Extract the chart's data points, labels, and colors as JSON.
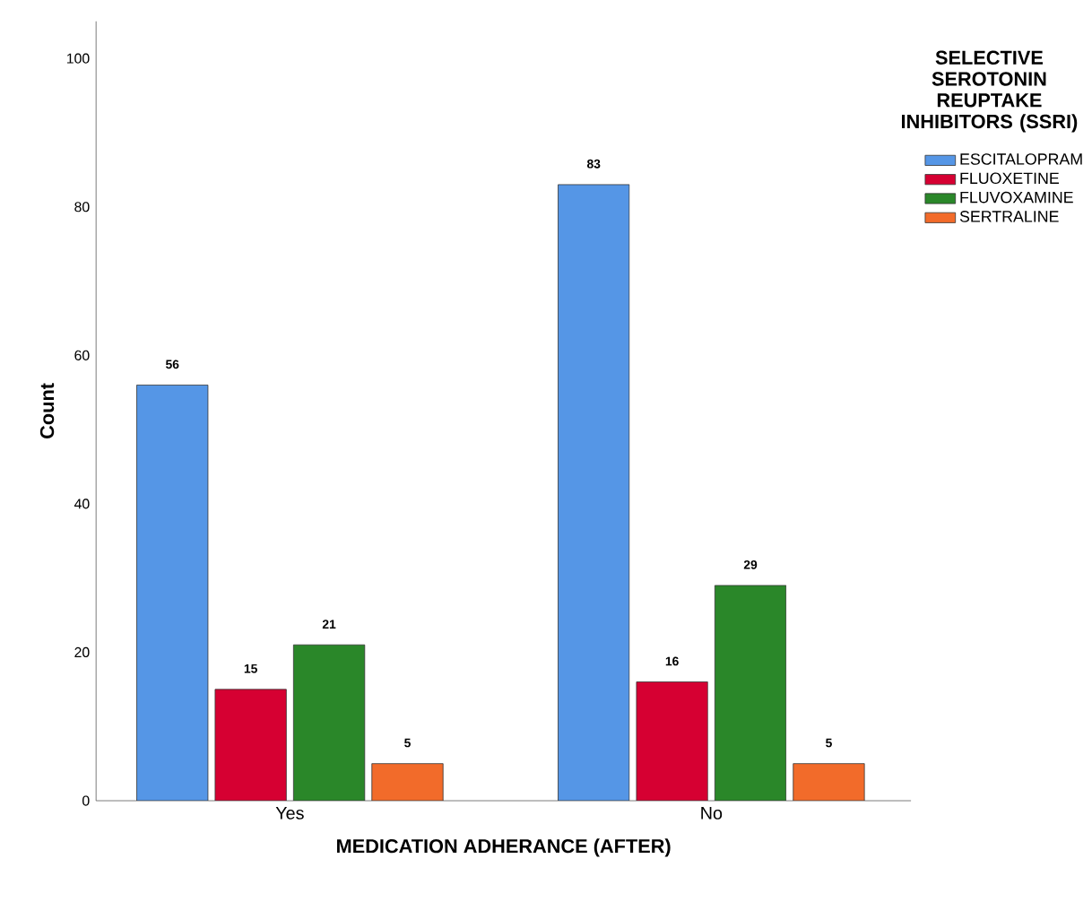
{
  "chart_data": {
    "type": "bar",
    "xlabel": "MEDICATION ADHERANCE (AFTER)",
    "ylabel": "Count",
    "legend_title": "SELECTIVE SEROTONIN REUPTAKE INHIBITORS (SSRI)",
    "categories": [
      "Yes",
      "No"
    ],
    "series": [
      {
        "name": "ESCITALOPRAM",
        "color": "#5596e6",
        "values": [
          56,
          83
        ]
      },
      {
        "name": "FLUOXETINE",
        "color": "#d60032",
        "values": [
          15,
          16
        ]
      },
      {
        "name": "FLUVOXAMINE",
        "color": "#2a8729",
        "values": [
          21,
          29
        ]
      },
      {
        "name": "SERTRALINE",
        "color": "#f26b2a",
        "values": [
          5,
          5
        ]
      }
    ],
    "ylim": [
      0,
      105
    ],
    "yticks": [
      0,
      20,
      40,
      60,
      80,
      100
    ],
    "data_labels": true,
    "legend": "right"
  }
}
